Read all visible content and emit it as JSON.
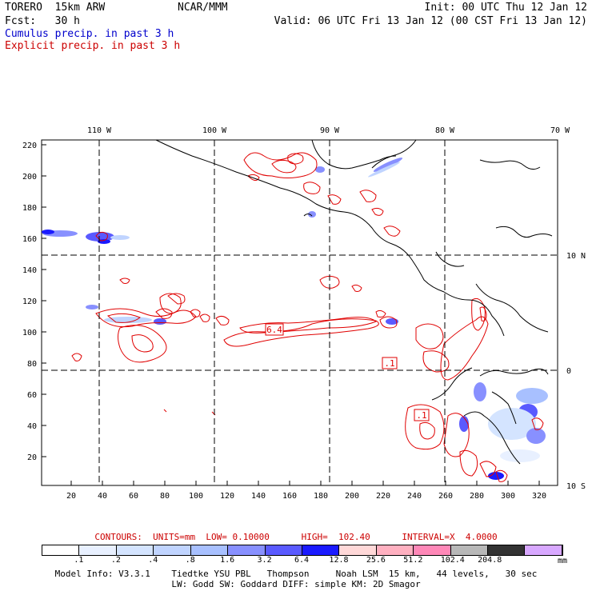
{
  "header": {
    "model": "TORERO  15km ARW",
    "org": "NCAR/MMM",
    "init": "Init: 00 UTC Thu 12 Jan 12",
    "fcst": "Fcst:   30 h",
    "valid": "Valid: 06 UTC Fri 13 Jan 12 (00 CST Fri 13 Jan 12)",
    "line_blue": "Cumulus precip. in past 3 h",
    "line_red": "Explicit precip. in past 3 h"
  },
  "colors": {
    "blue_text": "#0000cc",
    "red_text": "#cc0000",
    "contour": "#e00000"
  },
  "map": {
    "lon_labels": [
      "110 W",
      "100 W",
      "90 W",
      "80 W",
      "70 W"
    ],
    "lat_labels": [
      "10 N",
      "0",
      "10 S"
    ],
    "y_ticks": [
      "220",
      "200",
      "180",
      "160",
      "140",
      "120",
      "100",
      "80",
      "60",
      "40",
      "20"
    ],
    "x_ticks": [
      "20",
      "40",
      "60",
      "80",
      "100",
      "120",
      "140",
      "160",
      "180",
      "200",
      "220",
      "240",
      "260",
      "280",
      "300",
      "320"
    ],
    "box_labels": [
      "6.4",
      ".1",
      ".1"
    ]
  },
  "legend": {
    "contours_line": "CONTOURS:  UNITS=mm  LOW= 0.10000      HIGH=  102.40      INTERVAL=X  4.0000",
    "colors": [
      "#ffffff",
      "#e8f0ff",
      "#d4e4ff",
      "#c0d4ff",
      "#a8c0ff",
      "#8890ff",
      "#5a5aff",
      "#1a1aff",
      "#ffd8d8",
      "#ffb0c0",
      "#ff88b8",
      "#b8b8b8",
      "#333333",
      "#d8a8ff"
    ],
    "labels": [
      ".1",
      ".2",
      ".4",
      ".8",
      "1.6",
      "3.2",
      "6.4",
      "12.8",
      "25.6",
      "51.2",
      "102.4",
      "204.8"
    ],
    "unit": "mm"
  },
  "footer": {
    "line1": "Model Info: V3.3.1    Tiedtke YSU PBL   Thompson     Noah LSM  15 km,   44 levels,   30 sec",
    "line2": "LW: Godd SW: Goddard DIFF: simple KM: 2D Smagor"
  }
}
